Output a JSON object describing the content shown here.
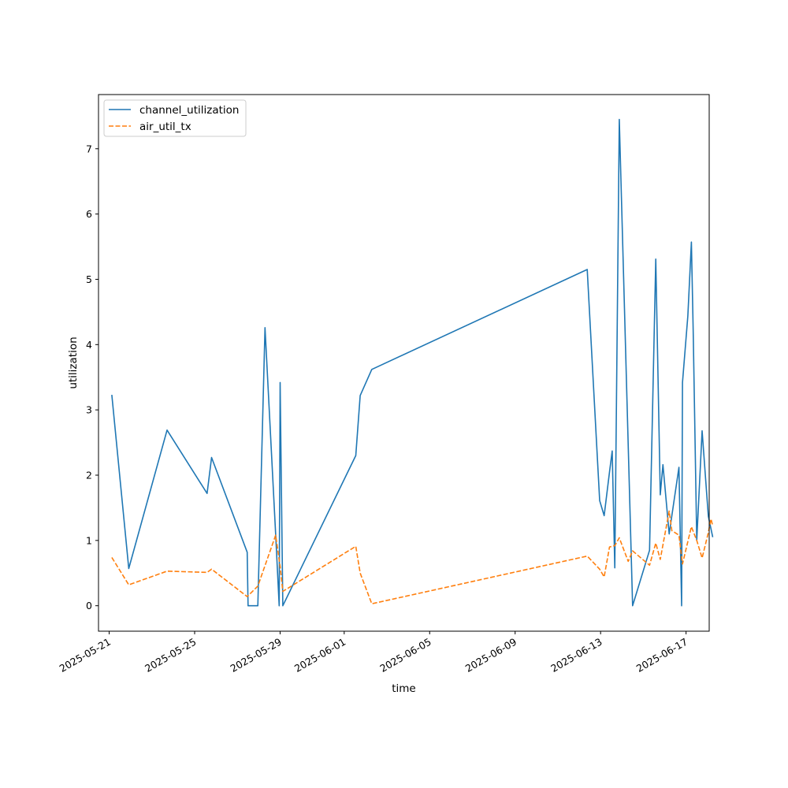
{
  "chart_data": {
    "type": "line",
    "title": "",
    "xlabel": "time",
    "ylabel": "utilization",
    "xlim": [
      "2025-05-20T12:00",
      "2025-06-18T02:00"
    ],
    "ylim": [
      -0.39,
      7.83
    ],
    "grid": false,
    "legend_position": "top-left",
    "x_ticks": [
      "2025-05-21",
      "2025-05-25",
      "2025-05-29",
      "2025-06-01",
      "2025-06-05",
      "2025-06-09",
      "2025-06-13",
      "2025-06-17"
    ],
    "y_ticks": [
      "0",
      "1",
      "2",
      "3",
      "4",
      "5",
      "6",
      "7"
    ],
    "series": [
      {
        "name": "channel_utilization",
        "color": "#1f77b4",
        "dash": "solid",
        "points": [
          [
            "2025-05-21T03:00",
            3.23
          ],
          [
            "2025-05-21T22:00",
            0.57
          ],
          [
            "2025-05-23T17:00",
            2.69
          ],
          [
            "2025-05-25T14:00",
            1.72
          ],
          [
            "2025-05-25T19:00",
            2.27
          ],
          [
            "2025-05-27T11:00",
            0.82
          ],
          [
            "2025-05-27T12:00",
            0.0
          ],
          [
            "2025-05-27T23:00",
            0.0
          ],
          [
            "2025-05-28T07:00",
            4.26
          ],
          [
            "2025-05-28T19:00",
            1.1
          ],
          [
            "2025-05-28T23:00",
            0.0
          ],
          [
            "2025-05-29T00:00",
            3.42
          ],
          [
            "2025-05-29T03:00",
            0.0
          ],
          [
            "2025-06-01T13:00",
            2.3
          ],
          [
            "2025-06-01T18:00",
            3.22
          ],
          [
            "2025-06-02T07:00",
            3.62
          ],
          [
            "2025-06-12T09:00",
            5.15
          ],
          [
            "2025-06-12T23:00",
            1.61
          ],
          [
            "2025-06-13T04:00",
            1.38
          ],
          [
            "2025-06-13T10:00",
            2.05
          ],
          [
            "2025-06-13T13:00",
            2.37
          ],
          [
            "2025-06-13T16:00",
            0.58
          ],
          [
            "2025-06-13T21:00",
            7.45
          ],
          [
            "2025-06-14T12:00",
            0.0
          ],
          [
            "2025-06-15T07:00",
            0.85
          ],
          [
            "2025-06-15T14:00",
            5.31
          ],
          [
            "2025-06-15T19:00",
            1.7
          ],
          [
            "2025-06-15T22:00",
            2.16
          ],
          [
            "2025-06-16T05:00",
            1.1
          ],
          [
            "2025-06-16T16:00",
            2.12
          ],
          [
            "2025-06-16T19:00",
            0.0
          ],
          [
            "2025-06-16T20:00",
            3.42
          ],
          [
            "2025-06-17T02:00",
            4.44
          ],
          [
            "2025-06-17T06:00",
            5.57
          ],
          [
            "2025-06-17T08:00",
            4.2
          ],
          [
            "2025-06-17T12:00",
            1.0
          ],
          [
            "2025-06-17T18:00",
            2.68
          ],
          [
            "2025-06-18T01:00",
            1.37
          ],
          [
            "2025-06-18T06:00",
            1.05
          ]
        ]
      },
      {
        "name": "air_util_tx",
        "color": "#ff7f0e",
        "dash": "dashed",
        "points": [
          [
            "2025-05-21T03:00",
            0.74
          ],
          [
            "2025-05-21T22:00",
            0.32
          ],
          [
            "2025-05-23T17:00",
            0.53
          ],
          [
            "2025-05-25T14:00",
            0.51
          ],
          [
            "2025-05-25T19:00",
            0.56
          ],
          [
            "2025-05-27T11:00",
            0.14
          ],
          [
            "2025-05-27T23:00",
            0.3
          ],
          [
            "2025-05-28T19:00",
            1.08
          ],
          [
            "2025-05-29T00:00",
            0.6
          ],
          [
            "2025-05-29T03:00",
            0.22
          ],
          [
            "2025-06-01T13:00",
            0.91
          ],
          [
            "2025-06-01T18:00",
            0.5
          ],
          [
            "2025-06-02T07:00",
            0.03
          ],
          [
            "2025-06-12T09:00",
            0.76
          ],
          [
            "2025-06-12T23:00",
            0.56
          ],
          [
            "2025-06-13T04:00",
            0.44
          ],
          [
            "2025-06-13T10:00",
            0.9
          ],
          [
            "2025-06-13T16:00",
            0.92
          ],
          [
            "2025-06-13T21:00",
            1.04
          ],
          [
            "2025-06-14T07:00",
            0.68
          ],
          [
            "2025-06-14T12:00",
            0.84
          ],
          [
            "2025-06-15T07:00",
            0.62
          ],
          [
            "2025-06-15T14:00",
            0.96
          ],
          [
            "2025-06-15T19:00",
            0.71
          ],
          [
            "2025-06-16T05:00",
            1.45
          ],
          [
            "2025-06-16T08:00",
            1.15
          ],
          [
            "2025-06-16T16:00",
            1.08
          ],
          [
            "2025-06-16T20:00",
            0.64
          ],
          [
            "2025-06-17T06:00",
            1.21
          ],
          [
            "2025-06-17T12:00",
            1.0
          ],
          [
            "2025-06-17T18:00",
            0.73
          ],
          [
            "2025-06-18T01:00",
            1.12
          ],
          [
            "2025-06-18T04:00",
            1.33
          ],
          [
            "2025-06-18T06:00",
            1.22
          ]
        ]
      }
    ]
  }
}
